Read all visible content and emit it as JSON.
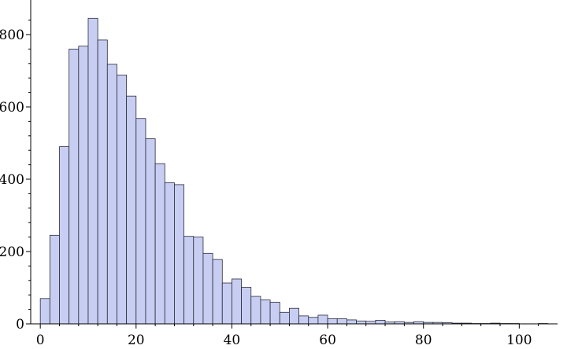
{
  "chart_data": {
    "type": "bar",
    "subtype": "histogram",
    "bin_width": 2,
    "bin_start": 0,
    "counts": [
      70,
      245,
      490,
      760,
      768,
      845,
      785,
      718,
      688,
      630,
      568,
      512,
      443,
      390,
      385,
      242,
      240,
      195,
      178,
      113,
      124,
      101,
      76,
      66,
      60,
      32,
      43,
      22,
      18,
      24,
      14,
      14,
      11,
      8,
      7,
      10,
      5,
      6,
      4,
      6,
      4,
      4,
      3,
      2,
      2,
      1,
      1,
      2,
      1,
      1,
      0,
      0,
      1
    ],
    "bar_color": "#c8cef2",
    "bar_edge_color": "#2a2a3a",
    "xlim": [
      -2,
      108
    ],
    "ylim": [
      0,
      850
    ],
    "x_ticks": [
      0,
      20,
      40,
      60,
      80,
      100
    ],
    "y_ticks": [
      0,
      200,
      400,
      600,
      800
    ],
    "x_tick_labels": [
      "0",
      "20",
      "40",
      "60",
      "80",
      "100"
    ],
    "y_tick_labels": [
      "0",
      "200",
      "400",
      "600",
      "800"
    ],
    "title": "",
    "xlabel": "",
    "ylabel": "",
    "grid": false
  }
}
